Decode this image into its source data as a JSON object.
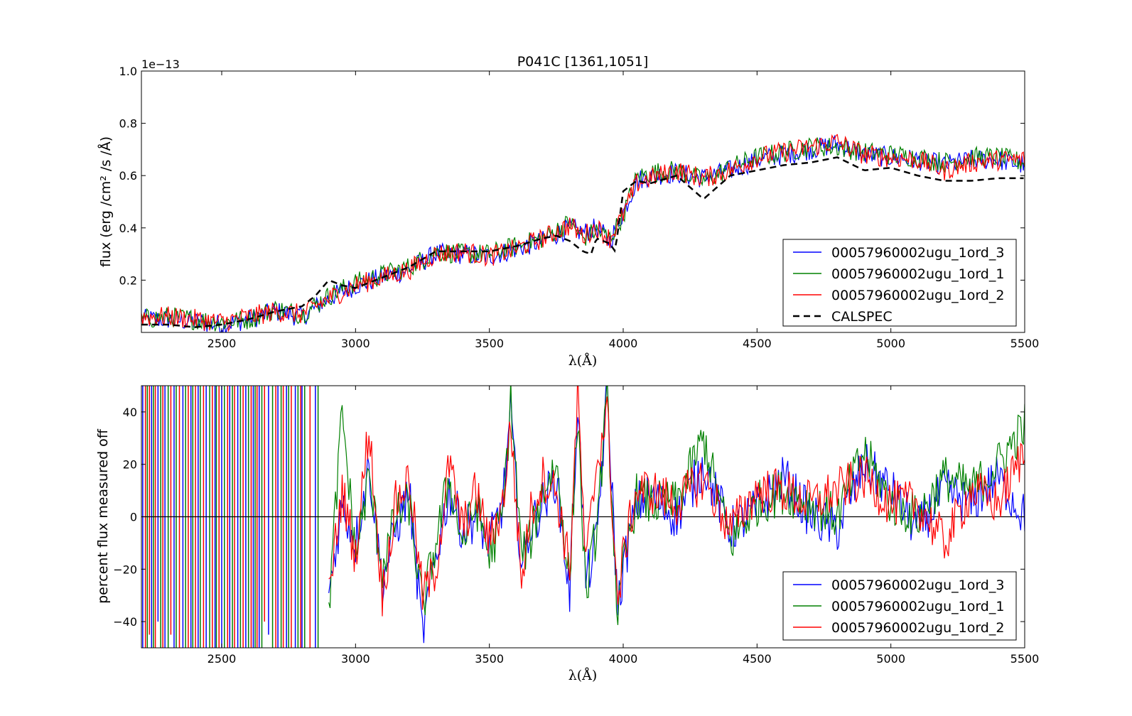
{
  "colors": {
    "blue": "#0000ff",
    "green": "#008000",
    "red": "#ff0000",
    "black": "#000000"
  },
  "chart_data": [
    {
      "type": "line",
      "title": "P041C [1361,1051]",
      "xlabel": "λ(Å)",
      "ylabel": "flux (erg /cm² /s /Å)",
      "offset_text": "1e−13",
      "xlim": [
        2200,
        5500
      ],
      "ylim": [
        0.0,
        1.0
      ],
      "xticks": [
        2500,
        3000,
        3500,
        4000,
        4500,
        5000,
        5500
      ],
      "yticks": [
        0.2,
        0.4,
        0.6,
        0.8,
        1.0
      ],
      "xtick_labels": [
        "2500",
        "3000",
        "3500",
        "4000",
        "4500",
        "5000",
        "5500"
      ],
      "ytick_labels": [
        "0.2",
        "0.4",
        "0.6",
        "0.8",
        "1.0"
      ],
      "legend_position": "lower-right",
      "grid": false,
      "series": [
        {
          "name": "00057960002ugu_1ord_3",
          "color": "#0000ff",
          "style": "solid",
          "x": [
            2200,
            2300,
            2400,
            2500,
            2600,
            2700,
            2800,
            2900,
            3000,
            3100,
            3200,
            3300,
            3400,
            3500,
            3600,
            3700,
            3800,
            3850,
            3900,
            3950,
            4000,
            4050,
            4100,
            4200,
            4300,
            4400,
            4500,
            4600,
            4700,
            4800,
            4900,
            5000,
            5100,
            5200,
            5300,
            5400,
            5500
          ],
          "y": [
            0.05,
            0.05,
            0.04,
            0.03,
            0.05,
            0.08,
            0.06,
            0.13,
            0.18,
            0.21,
            0.24,
            0.3,
            0.3,
            0.29,
            0.32,
            0.35,
            0.4,
            0.38,
            0.4,
            0.35,
            0.46,
            0.58,
            0.6,
            0.61,
            0.59,
            0.62,
            0.66,
            0.68,
            0.7,
            0.72,
            0.68,
            0.67,
            0.66,
            0.64,
            0.66,
            0.66,
            0.64
          ]
        },
        {
          "name": "00057960002ugu_1ord_1",
          "color": "#008000",
          "style": "solid",
          "x": [
            2200,
            2300,
            2400,
            2500,
            2600,
            2700,
            2800,
            2900,
            3000,
            3100,
            3200,
            3300,
            3400,
            3500,
            3600,
            3700,
            3800,
            3850,
            3900,
            3950,
            4000,
            4050,
            4100,
            4200,
            4300,
            4400,
            4500,
            4600,
            4700,
            4800,
            4900,
            5000,
            5100,
            5200,
            5300,
            5400,
            5500
          ],
          "y": [
            0.05,
            0.06,
            0.05,
            0.04,
            0.05,
            0.09,
            0.07,
            0.14,
            0.19,
            0.22,
            0.25,
            0.31,
            0.3,
            0.3,
            0.33,
            0.36,
            0.42,
            0.36,
            0.39,
            0.36,
            0.45,
            0.59,
            0.61,
            0.62,
            0.58,
            0.63,
            0.67,
            0.69,
            0.71,
            0.71,
            0.69,
            0.68,
            0.67,
            0.65,
            0.67,
            0.67,
            0.65
          ]
        },
        {
          "name": "00057960002ugu_1ord_2",
          "color": "#ff0000",
          "style": "solid",
          "x": [
            2200,
            2300,
            2400,
            2500,
            2600,
            2700,
            2800,
            2900,
            3000,
            3100,
            3200,
            3300,
            3400,
            3500,
            3600,
            3700,
            3800,
            3850,
            3900,
            3950,
            4000,
            4050,
            4100,
            4200,
            4300,
            4400,
            4500,
            4600,
            4700,
            4800,
            4900,
            5000,
            5100,
            5200,
            5300,
            5400,
            5500
          ],
          "y": [
            0.06,
            0.06,
            0.05,
            0.04,
            0.06,
            0.08,
            0.07,
            0.13,
            0.18,
            0.21,
            0.24,
            0.3,
            0.31,
            0.29,
            0.32,
            0.36,
            0.41,
            0.37,
            0.4,
            0.36,
            0.45,
            0.57,
            0.59,
            0.62,
            0.59,
            0.62,
            0.67,
            0.69,
            0.71,
            0.73,
            0.68,
            0.67,
            0.66,
            0.62,
            0.65,
            0.66,
            0.66
          ]
        },
        {
          "name": "CALSPEC",
          "color": "#000000",
          "style": "dashed",
          "x": [
            2200,
            2300,
            2400,
            2500,
            2600,
            2700,
            2800,
            2850,
            2900,
            2950,
            3000,
            3100,
            3200,
            3300,
            3400,
            3500,
            3600,
            3700,
            3750,
            3800,
            3850,
            3880,
            3900,
            3950,
            3970,
            4000,
            4050,
            4100,
            4200,
            4300,
            4400,
            4500,
            4600,
            4700,
            4800,
            4900,
            5000,
            5100,
            5200,
            5300,
            5400,
            5500
          ],
          "y": [
            0.03,
            0.03,
            0.02,
            0.03,
            0.05,
            0.08,
            0.1,
            0.14,
            0.2,
            0.18,
            0.17,
            0.21,
            0.25,
            0.31,
            0.31,
            0.31,
            0.33,
            0.36,
            0.37,
            0.35,
            0.31,
            0.3,
            0.36,
            0.34,
            0.31,
            0.54,
            0.58,
            0.57,
            0.6,
            0.51,
            0.6,
            0.62,
            0.64,
            0.65,
            0.67,
            0.62,
            0.63,
            0.6,
            0.58,
            0.58,
            0.59,
            0.59
          ]
        }
      ]
    },
    {
      "type": "line",
      "title": "",
      "xlabel": "λ(Å)",
      "ylabel": "percent flux measured off",
      "xlim": [
        2200,
        5500
      ],
      "ylim": [
        -50,
        50
      ],
      "xticks": [
        2500,
        3000,
        3500,
        4000,
        4500,
        5000,
        5500
      ],
      "yticks": [
        -40,
        -20,
        0,
        20,
        40
      ],
      "xtick_labels": [
        "2500",
        "3000",
        "3500",
        "4000",
        "4500",
        "5000",
        "5500"
      ],
      "ytick_labels": [
        "−40",
        "−20",
        "0",
        "20",
        "40"
      ],
      "reference_line": 0,
      "legend_position": "lower-right",
      "grid": false,
      "series": [
        {
          "name": "00057960002ugu_1ord_3",
          "color": "#0000ff",
          "x": [
            2900,
            2950,
            3000,
            3050,
            3100,
            3150,
            3200,
            3250,
            3300,
            3350,
            3400,
            3450,
            3500,
            3550,
            3580,
            3620,
            3650,
            3700,
            3750,
            3800,
            3830,
            3860,
            3900,
            3940,
            3980,
            4000,
            4050,
            4100,
            4200,
            4300,
            4400,
            4500,
            4600,
            4700,
            4800,
            4900,
            5000,
            5100,
            5200,
            5300,
            5400,
            5500
          ],
          "y": [
            -30,
            5,
            -10,
            20,
            -25,
            -5,
            10,
            -45,
            -15,
            10,
            -5,
            0,
            -10,
            5,
            40,
            -20,
            -5,
            5,
            15,
            -30,
            45,
            -25,
            -10,
            48,
            -35,
            -20,
            5,
            8,
            0,
            20,
            -5,
            3,
            15,
            0,
            -5,
            20,
            10,
            -5,
            10,
            5,
            15,
            0
          ]
        },
        {
          "name": "00057960002ugu_1ord_1",
          "color": "#008000",
          "x": [
            2900,
            2950,
            3000,
            3050,
            3100,
            3150,
            3200,
            3250,
            3300,
            3350,
            3400,
            3450,
            3500,
            3550,
            3580,
            3620,
            3650,
            3700,
            3750,
            3800,
            3830,
            3860,
            3900,
            3940,
            3980,
            4000,
            4050,
            4100,
            4200,
            4300,
            4400,
            4500,
            4600,
            4700,
            4800,
            4900,
            5000,
            5100,
            5200,
            5300,
            5400,
            5500
          ],
          "y": [
            -35,
            40,
            -15,
            15,
            -20,
            0,
            5,
            -35,
            -10,
            15,
            -10,
            5,
            -15,
            0,
            45,
            -15,
            -10,
            10,
            20,
            -25,
            40,
            -30,
            -5,
            45,
            -40,
            -20,
            8,
            5,
            5,
            30,
            -10,
            5,
            10,
            5,
            0,
            25,
            5,
            0,
            15,
            10,
            20,
            35
          ]
        },
        {
          "name": "00057960002ugu_1ord_2",
          "color": "#ff0000",
          "x": [
            2900,
            2950,
            3000,
            3050,
            3100,
            3150,
            3200,
            3250,
            3300,
            3350,
            3400,
            3450,
            3500,
            3550,
            3580,
            3620,
            3650,
            3700,
            3750,
            3800,
            3830,
            3860,
            3900,
            3940,
            3980,
            4000,
            4050,
            4100,
            4200,
            4300,
            4400,
            4500,
            4600,
            4700,
            4800,
            4900,
            5000,
            5100,
            5200,
            5300,
            5400,
            5500
          ],
          "y": [
            -30,
            10,
            -15,
            35,
            -30,
            5,
            15,
            -30,
            -20,
            20,
            -5,
            10,
            -10,
            5,
            35,
            -25,
            0,
            15,
            10,
            -20,
            48,
            -20,
            20,
            40,
            -35,
            -15,
            10,
            10,
            5,
            15,
            -5,
            10,
            10,
            5,
            10,
            15,
            5,
            5,
            -10,
            10,
            5,
            25
          ]
        }
      ]
    }
  ],
  "lowres_spikes": {
    "x": [
      2205,
      2215,
      2222,
      2230,
      2238,
      2245,
      2252,
      2262,
      2272,
      2280,
      2288,
      2300,
      2310,
      2322,
      2330,
      2342,
      2355,
      2365,
      2375,
      2385,
      2392,
      2402,
      2412,
      2420,
      2432,
      2442,
      2455,
      2465,
      2475,
      2480,
      2490,
      2500,
      2510,
      2522,
      2530,
      2540,
      2548,
      2560,
      2570,
      2580,
      2590,
      2600,
      2610,
      2618,
      2625,
      2632,
      2640,
      2650,
      2660,
      2675,
      2690,
      2702,
      2710,
      2722,
      2730,
      2742,
      2750,
      2760,
      2775,
      2785,
      2795,
      2800,
      2810,
      2830,
      2850,
      2860
    ],
    "lo": [
      -50,
      -50,
      -50,
      -45,
      -50,
      -50,
      -50,
      -40,
      -50,
      -50,
      -50,
      -50,
      -45,
      -50,
      -50,
      -50,
      -50,
      -50,
      -50,
      -50,
      -50,
      -50,
      -50,
      -50,
      -50,
      -50,
      -50,
      -50,
      -50,
      -50,
      -50,
      -50,
      -50,
      -50,
      -50,
      -50,
      -50,
      -50,
      -50,
      -50,
      -50,
      -50,
      -50,
      -50,
      -50,
      -50,
      -50,
      -50,
      -40,
      -45,
      -50,
      -50,
      -50,
      -50,
      -50,
      -50,
      -50,
      -50,
      -50,
      -50,
      -50,
      -50,
      -50,
      -50,
      -50,
      -50
    ],
    "hi": [
      50,
      50,
      50,
      50,
      50,
      50,
      50,
      50,
      50,
      50,
      50,
      50,
      50,
      50,
      50,
      50,
      50,
      50,
      50,
      50,
      50,
      50,
      50,
      50,
      50,
      50,
      50,
      50,
      50,
      50,
      50,
      50,
      50,
      50,
      50,
      50,
      50,
      50,
      50,
      50,
      50,
      50,
      50,
      50,
      50,
      50,
      50,
      50,
      50,
      50,
      50,
      50,
      50,
      50,
      50,
      50,
      50,
      50,
      50,
      50,
      50,
      50,
      50,
      50,
      50,
      50
    ],
    "colors": [
      "blue",
      "red",
      "green",
      "red",
      "blue",
      "green",
      "red",
      "blue",
      "green",
      "red",
      "blue",
      "green",
      "red",
      "blue",
      "green",
      "red",
      "blue",
      "green",
      "red",
      "blue",
      "green",
      "red",
      "blue",
      "green",
      "red",
      "blue",
      "green",
      "red",
      "blue",
      "green",
      "red",
      "blue",
      "green",
      "red",
      "blue",
      "green",
      "red",
      "blue",
      "green",
      "red",
      "blue",
      "green",
      "red",
      "blue",
      "green",
      "red",
      "blue",
      "green",
      "red",
      "blue",
      "green",
      "red",
      "blue",
      "green",
      "red",
      "blue",
      "green",
      "red",
      "blue",
      "green",
      "red",
      "blue",
      "green",
      "red",
      "blue",
      "green"
    ]
  }
}
